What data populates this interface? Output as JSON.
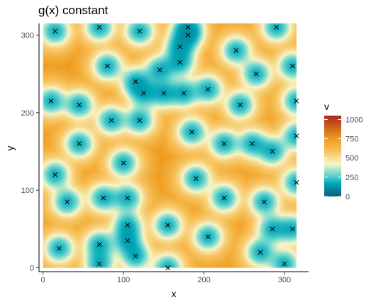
{
  "chart_data": {
    "type": "heatmap",
    "title": "g(x) constant",
    "xlabel": "x",
    "ylabel": "y",
    "xlim": [
      -5,
      330
    ],
    "ylim": [
      -5,
      315
    ],
    "x_ticks": [
      0,
      100,
      200,
      300
    ],
    "y_ticks": [
      0,
      100,
      200,
      300
    ],
    "grid": false,
    "fill": {
      "name": "v",
      "range": [
        0,
        1050
      ],
      "breaks": [
        0,
        250,
        500,
        750,
        1000
      ],
      "colors": [
        "#0b5f7c",
        "#00a6b7",
        "#5fd3cf",
        "#f6f5c8",
        "#f7c15a",
        "#ee9a1c",
        "#a8291f"
      ],
      "stops": [
        0.0,
        0.16,
        0.26,
        0.4,
        0.56,
        0.72,
        1.0
      ]
    },
    "points_marker": "x",
    "points": [
      [
        15,
        305
      ],
      [
        70,
        310
      ],
      [
        120,
        305
      ],
      [
        180,
        310
      ],
      [
        180,
        300
      ],
      [
        290,
        310
      ],
      [
        170,
        285
      ],
      [
        240,
        280
      ],
      [
        170,
        265
      ],
      [
        80,
        260
      ],
      [
        145,
        255
      ],
      [
        265,
        250
      ],
      [
        310,
        260
      ],
      [
        115,
        240
      ],
      [
        125,
        225
      ],
      [
        150,
        225
      ],
      [
        175,
        225
      ],
      [
        205,
        230
      ],
      [
        10,
        215
      ],
      [
        45,
        210
      ],
      [
        245,
        210
      ],
      [
        315,
        215
      ],
      [
        85,
        190
      ],
      [
        120,
        190
      ],
      [
        185,
        175
      ],
      [
        315,
        170
      ],
      [
        45,
        160
      ],
      [
        225,
        160
      ],
      [
        260,
        160
      ],
      [
        285,
        150
      ],
      [
        100,
        135
      ],
      [
        15,
        120
      ],
      [
        190,
        115
      ],
      [
        315,
        110
      ],
      [
        75,
        90
      ],
      [
        105,
        90
      ],
      [
        225,
        90
      ],
      [
        30,
        85
      ],
      [
        275,
        85
      ],
      [
        105,
        55
      ],
      [
        155,
        55
      ],
      [
        285,
        50
      ],
      [
        310,
        50
      ],
      [
        105,
        35
      ],
      [
        205,
        40
      ],
      [
        20,
        25
      ],
      [
        70,
        30
      ],
      [
        115,
        15
      ],
      [
        270,
        20
      ],
      [
        70,
        5
      ],
      [
        155,
        0
      ],
      [
        300,
        5
      ]
    ]
  }
}
